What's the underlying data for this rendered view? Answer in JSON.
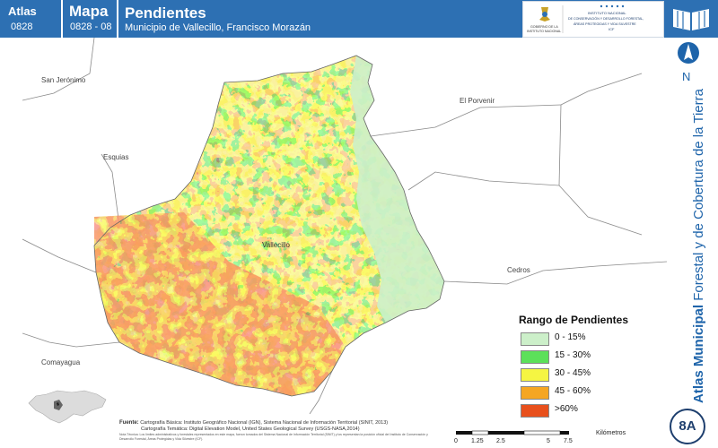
{
  "header": {
    "atlas_label": "Atlas",
    "atlas_number": "0828",
    "map_label": "Mapa",
    "map_number": "0828 - 08",
    "title": "Pendientes",
    "subtitle": "Municipio de Vallecillo, Francisco Morazán"
  },
  "logos": {
    "left_text_1": "GOBIERNO DE LA",
    "left_text_2": "REPÚBLICA DE HONDURAS",
    "right_text_1": "INSTITUTO NACIONAL",
    "right_text_2": "DE CONSERVACIÓN Y DESARROLLO FORESTAL,",
    "right_text_3": "ÁREAS PROTEGIDAS Y VIDA SILVESTRE",
    "right_text_4": "ICF"
  },
  "sidebar": {
    "north_letter": "N",
    "title_bold": "Atlas Municipal",
    "title_rest": " Forestal y de Cobertura de la Tierra",
    "badge": "8A"
  },
  "places": {
    "san_jeronimo": "San Jerónimo",
    "el_porvenir": "El Porvenir",
    "esquias": "Esquias",
    "vallecillo": "Vallecillo",
    "cedros": "Cedros",
    "comayagua": "Comayagua"
  },
  "legend": {
    "title": "Rango de Pendientes",
    "items": [
      {
        "label": "0 - 15%",
        "color": "#ccefc9"
      },
      {
        "label": "15 - 30%",
        "color": "#5ce05a"
      },
      {
        "label": "30 - 45%",
        "color": "#f5f542"
      },
      {
        "label": "45 - 60%",
        "color": "#f5a623"
      },
      {
        "label": ">60%",
        "color": "#e8501c"
      }
    ]
  },
  "source": {
    "label": "Fuente:",
    "line1": "Cartografía Básica: Instituto Geográfico Nacional (IGN), Sistema Nacional de Información Territorial (SINIT, 2013)",
    "line2": "Cartografía Temática: Digital Elevation Model, United States Geological Survey (USGS-NASA,2014)",
    "note": "Nota Técnica: Los límites administrativos y forestales representados en este mapa, fueron tomados del Sistema Nacional de Información Territorial (SINIT) y los representan la posición oficial del Instituto de Conservación y Desarrollo Forestal, Áreas Protegidas y Vida Silvestre (ICF)."
  },
  "scale": {
    "ticks": [
      "0",
      "1.25",
      "2.5",
      "5",
      "7.5"
    ],
    "unit": "Kilómetros"
  }
}
